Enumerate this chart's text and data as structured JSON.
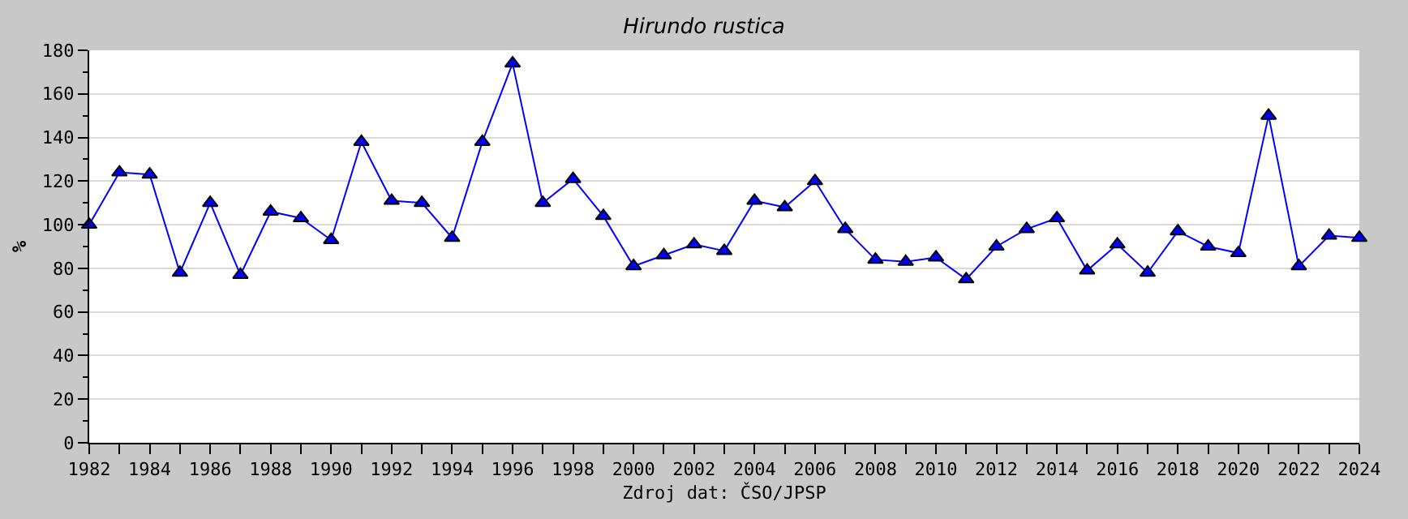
{
  "chart_data": {
    "type": "line",
    "title": "Hirundo rustica",
    "xlabel": "Zdroj dat: ČSO/JPSP",
    "ylabel": "%",
    "x": [
      1982,
      1983,
      1984,
      1985,
      1986,
      1987,
      1988,
      1989,
      1990,
      1991,
      1992,
      1993,
      1994,
      1995,
      1996,
      1997,
      1998,
      1999,
      2000,
      2001,
      2002,
      2003,
      2004,
      2005,
      2006,
      2007,
      2008,
      2009,
      2010,
      2011,
      2012,
      2013,
      2014,
      2015,
      2016,
      2017,
      2018,
      2019,
      2020,
      2021,
      2022,
      2023,
      2024
    ],
    "series": [
      {
        "color": "#0000ff",
        "values": [
          100,
          124,
          123,
          78,
          110,
          77,
          106,
          103,
          93,
          138,
          111,
          110,
          94,
          138,
          174,
          110,
          121,
          104,
          81,
          86,
          91,
          88,
          111,
          108,
          120,
          98,
          84,
          83,
          85,
          75,
          90,
          98,
          103,
          79,
          91,
          78,
          97,
          90,
          87,
          150,
          81,
          95,
          94
        ]
      }
    ],
    "xlim": [
      1982,
      2024
    ],
    "xticks": [
      1982,
      {
        "value": 1983,
        "label": null
      },
      1984,
      {
        "value": 1985,
        "label": null
      },
      1986,
      {
        "value": 1987,
        "label": null
      },
      1988,
      {
        "value": 1989,
        "label": null
      },
      1990,
      {
        "value": 1991,
        "label": null
      },
      1992,
      {
        "value": 1993,
        "label": null
      },
      1994,
      {
        "value": 1995,
        "label": null
      },
      1996,
      {
        "value": 1997,
        "label": null
      },
      1998,
      {
        "value": 1999,
        "label": null
      },
      2000,
      {
        "value": 2001,
        "label": null
      },
      2002,
      {
        "value": 2003,
        "label": null
      },
      2004,
      {
        "value": 2005,
        "label": null
      },
      2006,
      {
        "value": 2007,
        "label": null
      },
      2008,
      {
        "value": 2009,
        "label": null
      },
      2010,
      {
        "value": 2011,
        "label": null
      },
      2012,
      {
        "value": 2013,
        "label": null
      },
      2014,
      {
        "value": 2015,
        "label": null
      },
      2016,
      {
        "value": 2017,
        "label": null
      },
      2018,
      {
        "value": 2019,
        "label": null
      },
      2020,
      {
        "value": 2021,
        "label": null
      },
      2022,
      {
        "value": 2023,
        "label": null
      },
      2024
    ],
    "ylim": [
      0,
      180
    ],
    "yticks": [
      0,
      {
        "value": 10,
        "label": null
      },
      20,
      {
        "value": 30,
        "label": null
      },
      40,
      {
        "value": 50,
        "label": null
      },
      60,
      {
        "value": 70,
        "label": null
      },
      80,
      {
        "value": 90,
        "label": null
      },
      100,
      {
        "value": 110,
        "label": null
      },
      120,
      {
        "value": 130,
        "label": null
      },
      140,
      {
        "value": 150,
        "label": null
      },
      160,
      {
        "value": 170,
        "label": null
      },
      180
    ],
    "grid": "y",
    "marker": "triangle",
    "line_style": "solid"
  }
}
